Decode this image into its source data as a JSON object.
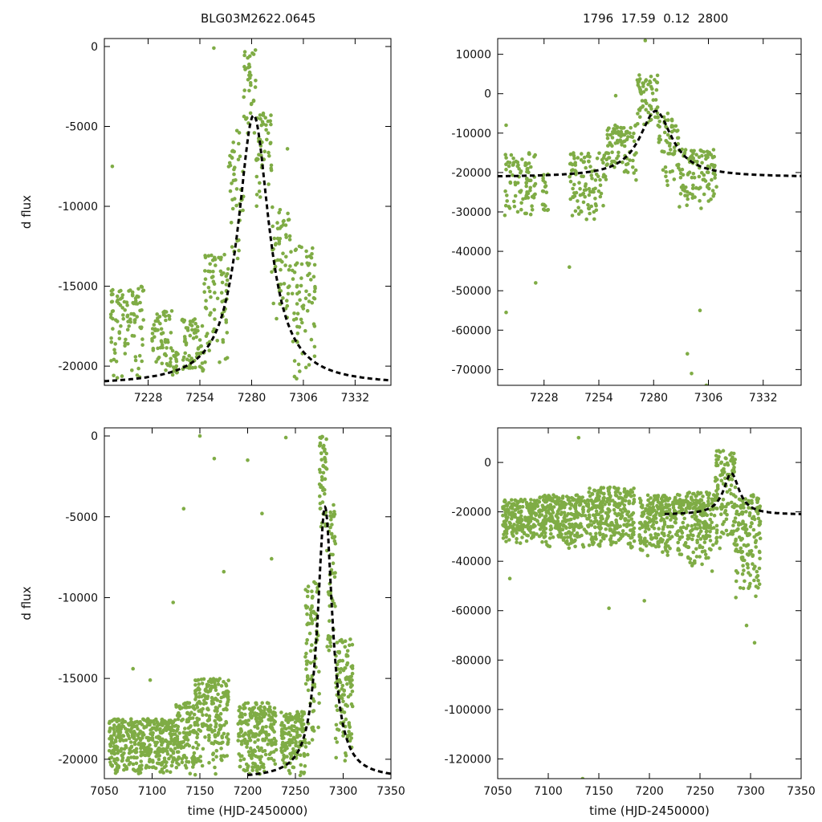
{
  "titles": {
    "left": "BLG03M2622.0645",
    "right": "1796  17.59  0.12  2800"
  },
  "colors": {
    "points": "#7fac45",
    "model": "#000000",
    "axis": "#000000",
    "background": "#ffffff"
  },
  "chart_data": [
    {
      "id": "top-left",
      "type": "scatter",
      "title": "BLG03M2622.0645",
      "xlabel": "",
      "ylabel": "d flux",
      "xlim": [
        7206,
        7350
      ],
      "ylim": [
        -21200,
        500
      ],
      "xticks": [
        7228,
        7254,
        7280,
        7306,
        7332
      ],
      "yticks": [
        0,
        -5000,
        -10000,
        -15000,
        -20000
      ],
      "series": [
        {
          "name": "observations",
          "kind": "points",
          "segments": [
            [
              7209,
              7226,
              -21000,
              -15000
            ],
            [
              7230,
              7240,
              -20500,
              -16500
            ],
            [
              7240,
              7243,
              -20800,
              -19000
            ],
            [
              7245,
              7256,
              -21000,
              -17000
            ],
            [
              7256,
              7268,
              -20000,
              -13000
            ],
            [
              7268,
              7276,
              -14000,
              -5000
            ],
            [
              7276,
              7282,
              -6000,
              0
            ],
            [
              7282,
              7290,
              -10000,
              -4000
            ],
            [
              7290,
              7300,
              -18000,
              -10000
            ],
            [
              7300,
              7312,
              -21000,
              -12500
            ]
          ],
          "outliers": [
            [
              7210,
              -7500
            ],
            [
              7261,
              -100
            ],
            [
              7298,
              -6400
            ],
            [
              7305,
              -14500
            ]
          ]
        },
        {
          "name": "microlensing model",
          "kind": "dashed-line",
          "t0": 7281,
          "tE": 9.4,
          "peak": 16900,
          "baseline": -21200,
          "range": [
            7206,
            7350
          ]
        }
      ]
    },
    {
      "id": "top-right",
      "type": "scatter",
      "title": "1796  17.59  0.12  2800",
      "xlabel": "",
      "ylabel": "",
      "xlim": [
        7206,
        7350
      ],
      "ylim": [
        -74000,
        14000
      ],
      "xticks": [
        7228,
        7254,
        7280,
        7306,
        7332
      ],
      "yticks": [
        10000,
        0,
        -10000,
        -20000,
        -30000,
        -40000,
        -50000,
        -60000,
        -70000
      ],
      "series": [
        {
          "name": "observations",
          "kind": "points",
          "segments": [
            [
              7209,
              7224,
              -32000,
              -15000
            ],
            [
              7227,
              7230,
              -32000,
              -20000
            ],
            [
              7240,
              7258,
              -32000,
              -15000
            ],
            [
              7258,
              7272,
              -22000,
              -8000
            ],
            [
              7272,
              7282,
              -10000,
              5000
            ],
            [
              7282,
              7292,
              -24000,
              -5000
            ],
            [
              7292,
              7306,
              -30000,
              -14000
            ],
            [
              7306,
              7310,
              -28000,
              -14000
            ]
          ],
          "outliers": [
            [
              7210,
              -8000
            ],
            [
              7210,
              -55500
            ],
            [
              7224,
              -48000
            ],
            [
              7240,
              -44000
            ],
            [
              7262,
              -500
            ],
            [
              7276,
              13500
            ],
            [
              7296,
              -66000
            ],
            [
              7298,
              -71000
            ],
            [
              7302,
              -55000
            ],
            [
              7305,
              -74000
            ]
          ]
        },
        {
          "name": "microlensing model",
          "kind": "dashed-line",
          "t0": 7281,
          "tE": 9.4,
          "peak": 16800,
          "baseline": -21200,
          "range": [
            7206,
            7350
          ]
        }
      ]
    },
    {
      "id": "bottom-left",
      "type": "scatter",
      "title": "",
      "xlabel": "time (HJD-2450000)",
      "ylabel": "d flux",
      "xlim": [
        7050,
        7350
      ],
      "ylim": [
        -21200,
        500
      ],
      "xticks": [
        7050,
        7100,
        7150,
        7200,
        7250,
        7300,
        7350
      ],
      "yticks": [
        0,
        -5000,
        -10000,
        -15000,
        -20000
      ],
      "series": [
        {
          "name": "observations",
          "kind": "points",
          "segments": [
            [
              7055,
              7125,
              -21000,
              -17500
            ],
            [
              7125,
              7145,
              -21000,
              -16500
            ],
            [
              7145,
              7180,
              -21000,
              -15000
            ],
            [
              7190,
              7230,
              -21000,
              -16500
            ],
            [
              7235,
              7260,
              -21000,
              -17000
            ],
            [
              7260,
              7275,
              -20000,
              -9000
            ],
            [
              7275,
              7283,
              -6000,
              0
            ],
            [
              7283,
              7292,
              -14000,
              -4000
            ],
            [
              7292,
              7310,
              -21000,
              -12500
            ]
          ],
          "outliers": [
            [
              7080,
              -14400
            ],
            [
              7098,
              -15100
            ],
            [
              7122,
              -10300
            ],
            [
              7133,
              -4500
            ],
            [
              7150,
              0
            ],
            [
              7165,
              -1400
            ],
            [
              7175,
              -8400
            ],
            [
              7200,
              -1500
            ],
            [
              7215,
              -4800
            ],
            [
              7225,
              -7600
            ],
            [
              7240,
              -100
            ]
          ]
        },
        {
          "name": "microlensing model",
          "kind": "dashed-line",
          "t0": 7281,
          "tE": 9.4,
          "peak": 16800,
          "baseline": -21200,
          "range": [
            7200,
            7350
          ]
        }
      ]
    },
    {
      "id": "bottom-right",
      "type": "scatter",
      "title": "",
      "xlabel": "time (HJD-2450000)",
      "ylabel": "",
      "xlim": [
        7050,
        7350
      ],
      "ylim": [
        -128000,
        14000
      ],
      "xticks": [
        7050,
        7100,
        7150,
        7200,
        7250,
        7300,
        7350
      ],
      "yticks": [
        0,
        -20000,
        -40000,
        -60000,
        -80000,
        -100000,
        -120000
      ],
      "series": [
        {
          "name": "observations",
          "kind": "points",
          "segments": [
            [
              7055,
              7090,
              -33000,
              -15000
            ],
            [
              7090,
              7140,
              -35000,
              -13000
            ],
            [
              7140,
              7185,
              -35000,
              -10000
            ],
            [
              7190,
              7235,
              -38000,
              -13000
            ],
            [
              7235,
              7265,
              -42000,
              -12000
            ],
            [
              7265,
              7285,
              -35000,
              5000
            ],
            [
              7285,
              7310,
              -55000,
              -13000
            ]
          ],
          "outliers": [
            [
              7062,
              -47000
            ],
            [
              7130,
              10000
            ],
            [
              7134,
              -128000
            ],
            [
              7160,
              -59000
            ],
            [
              7195,
              -56000
            ],
            [
              7262,
              -44000
            ],
            [
              7296,
              -66000
            ],
            [
              7304,
              -73000
            ]
          ]
        },
        {
          "name": "microlensing model",
          "kind": "dashed-line",
          "t0": 7281,
          "tE": 9.4,
          "peak": 16800,
          "baseline": -21200,
          "range": [
            7215,
            7350
          ]
        }
      ]
    }
  ]
}
